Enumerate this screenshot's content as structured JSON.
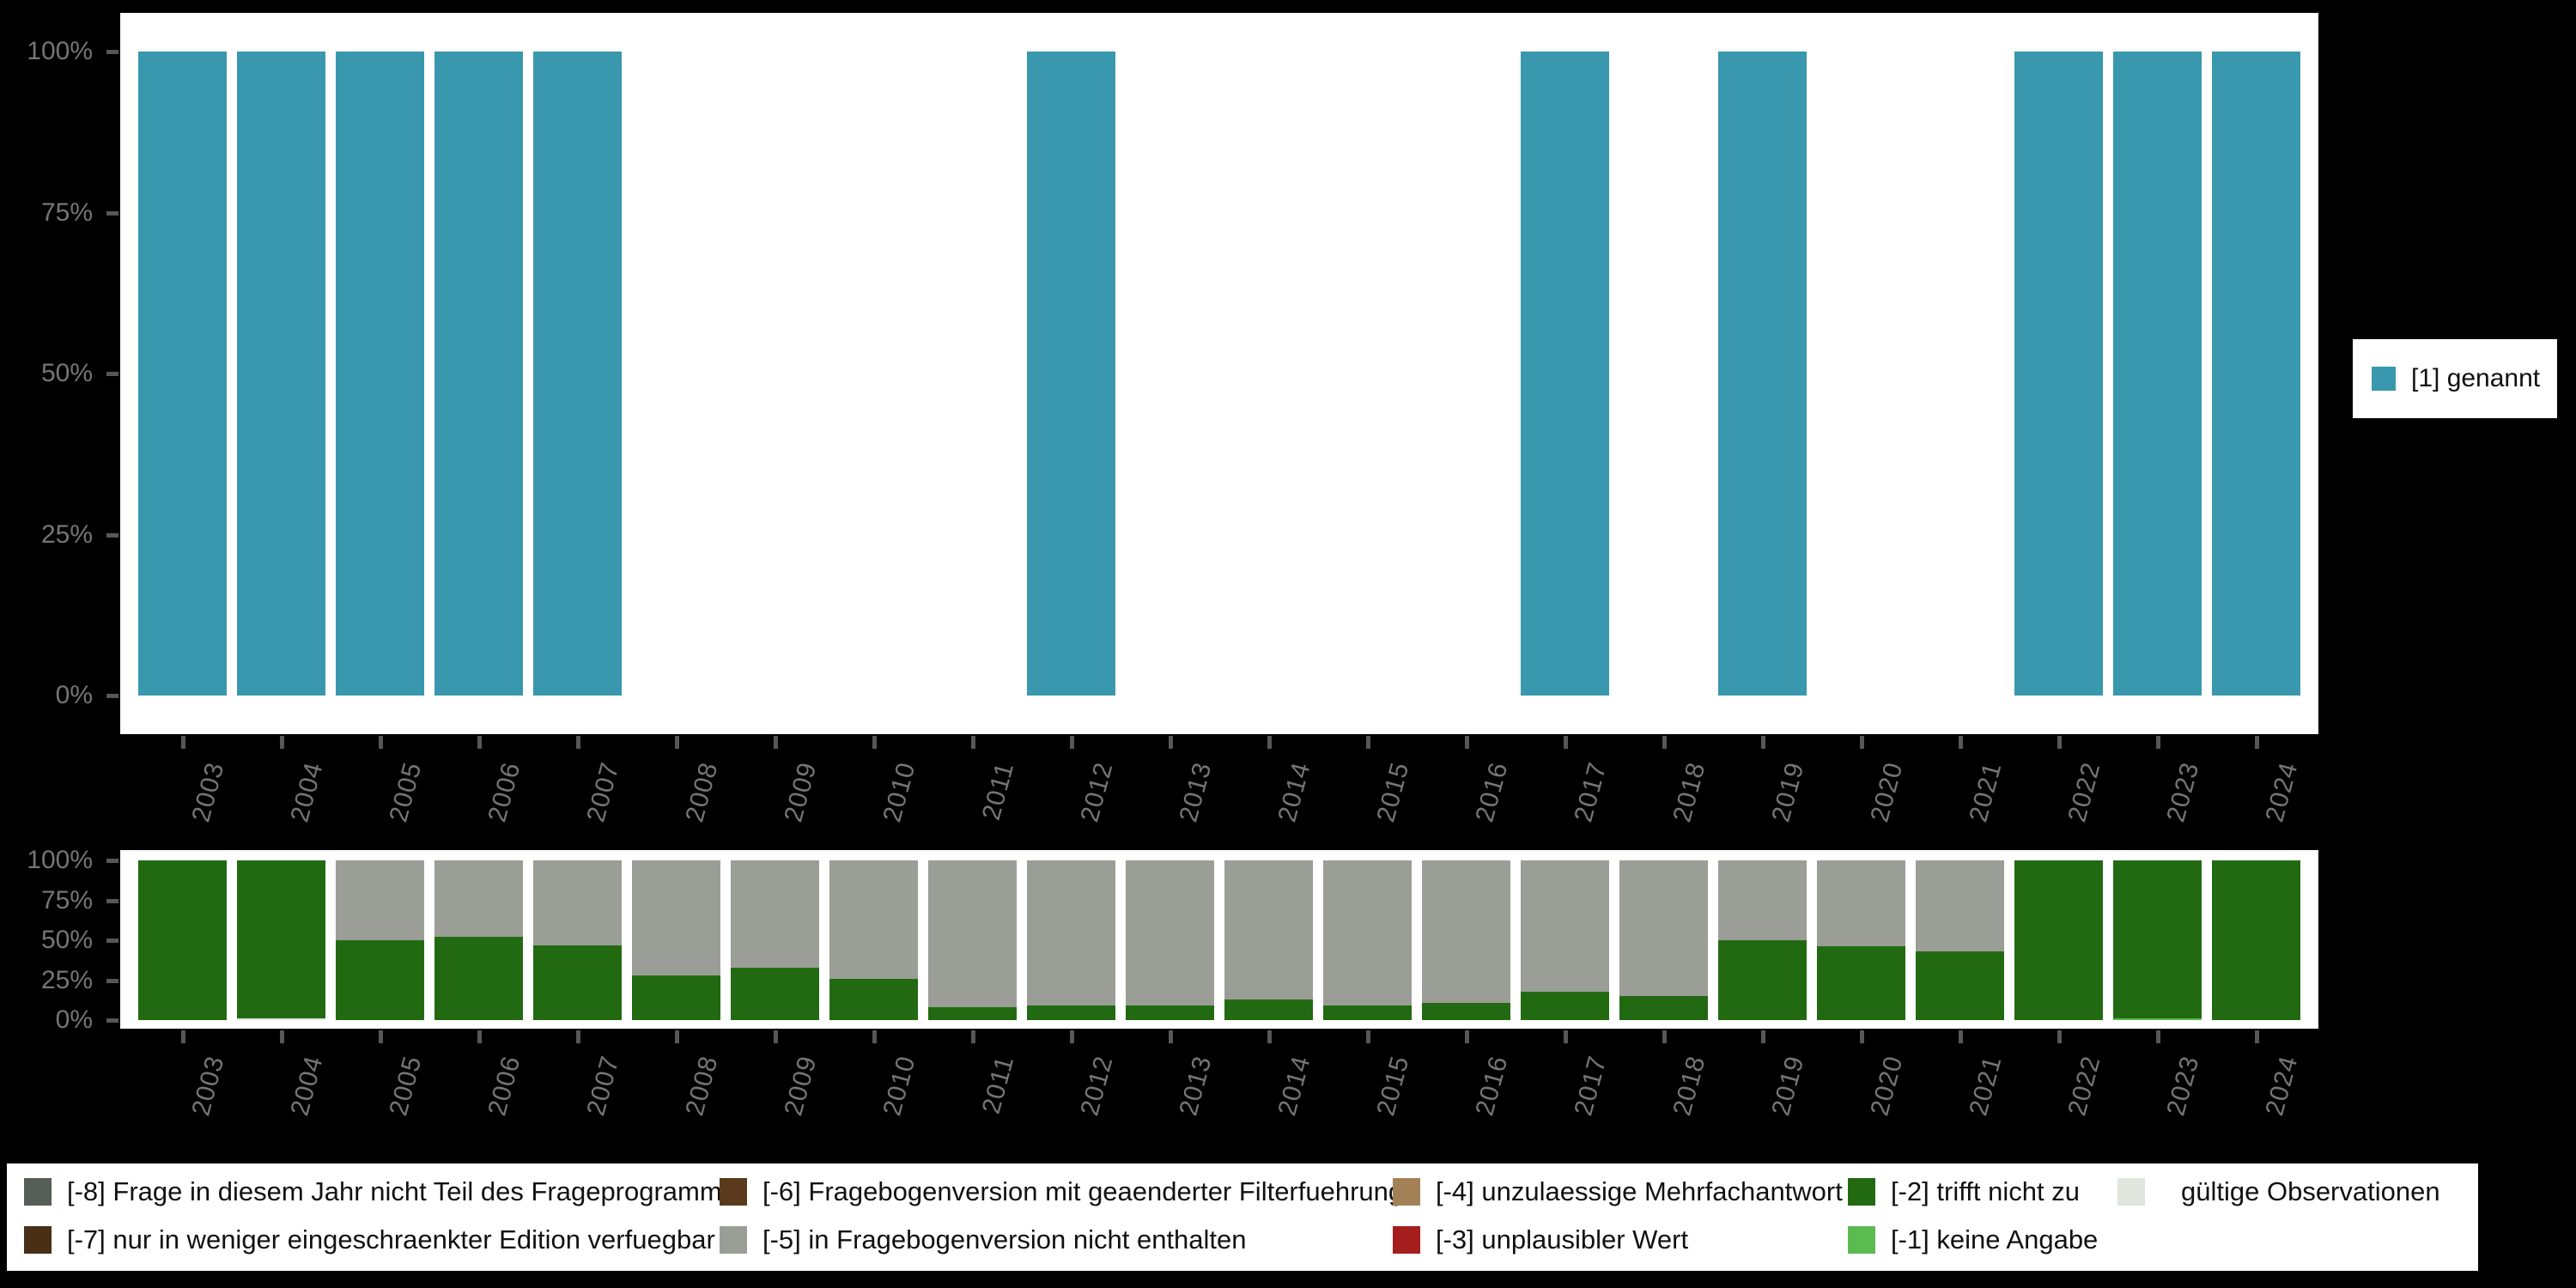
{
  "colors": {
    "background": "#000000",
    "panel": "#ffffff",
    "genannt_teal": "#3998AD",
    "trifft_nicht_zu_green": "#226A12",
    "nicht_enthalten_gray": "#9A9E96",
    "keine_angabe_lightgreen": "#5BBA50",
    "gueltige_lightgray": "#E0E5DD",
    "axis_text": "#757575",
    "tick": "#575757",
    "legend_text": "#111111"
  },
  "axis": {
    "y_tick_labels": [
      "100%",
      "75%",
      "50%",
      "25%",
      "0%"
    ],
    "x_tick_angle_deg": 75
  },
  "chart_data": [
    {
      "type": "bar",
      "stacked": true,
      "unit": "percent",
      "title": "",
      "xlabel": "",
      "ylabel": "",
      "ylim": [
        0,
        100
      ],
      "ytick_labels": [
        "0%",
        "25%",
        "50%",
        "75%",
        "100%"
      ],
      "grid": false,
      "legend_position": "right",
      "categories": [
        "2003",
        "2004",
        "2005",
        "2006",
        "2007",
        "2008",
        "2009",
        "2010",
        "2011",
        "2012",
        "2013",
        "2014",
        "2015",
        "2016",
        "2017",
        "2018",
        "2019",
        "2020",
        "2021",
        "2022",
        "2023",
        "2024"
      ],
      "series": [
        {
          "name": "[1] genannt",
          "color": "#3998AD",
          "values": [
            100,
            100,
            100,
            100,
            100,
            0,
            0,
            0,
            0,
            100,
            0,
            0,
            0,
            0,
            100,
            0,
            100,
            0,
            0,
            100,
            100,
            100
          ]
        }
      ]
    },
    {
      "type": "bar",
      "stacked": true,
      "unit": "percent",
      "title": "",
      "xlabel": "",
      "ylabel": "",
      "ylim": [
        0,
        100
      ],
      "ytick_labels": [
        "0%",
        "25%",
        "50%",
        "75%",
        "100%"
      ],
      "grid": false,
      "legend_position": "bottom",
      "categories": [
        "2003",
        "2004",
        "2005",
        "2006",
        "2007",
        "2008",
        "2009",
        "2010",
        "2011",
        "2012",
        "2013",
        "2014",
        "2015",
        "2016",
        "2017",
        "2018",
        "2019",
        "2020",
        "2021",
        "2022",
        "2023",
        "2024"
      ],
      "series": [
        {
          "name": "gültige Observationen",
          "color": "#E0E5DD",
          "values": [
            0,
            1,
            0,
            0,
            0,
            0,
            0,
            0,
            0,
            0,
            0,
            0,
            0,
            0,
            0,
            0,
            0,
            0,
            0,
            0,
            0,
            0
          ]
        },
        {
          "name": "[-1] keine Angabe",
          "color": "#5BBA50",
          "values": [
            0,
            0,
            0,
            0,
            0,
            0,
            0,
            0,
            0,
            0,
            0,
            0,
            0,
            0,
            0,
            0,
            0,
            0,
            0,
            0,
            1,
            0
          ]
        },
        {
          "name": "[-2] trifft nicht zu",
          "color": "#226A12",
          "values": [
            100,
            99,
            50,
            52,
            47,
            28,
            33,
            26,
            8,
            9,
            9,
            13,
            9,
            11,
            18,
            15,
            50,
            46,
            43,
            100,
            99,
            100
          ]
        },
        {
          "name": "[-5] in Fragebogenversion nicht enthalten",
          "color": "#9A9E96",
          "values": [
            0,
            0,
            50,
            48,
            53,
            72,
            67,
            74,
            92,
            91,
            91,
            87,
            91,
            89,
            82,
            85,
            50,
            54,
            57,
            0,
            0,
            0
          ]
        }
      ]
    }
  ],
  "legend_right": {
    "label": "[1] genannt",
    "color": "#3998AD"
  },
  "legend_bottom": {
    "items": [
      {
        "label": "[-8] Frage in diesem Jahr nicht Teil des Frageprogramms",
        "color": "#555F57",
        "col": 0,
        "row": 0
      },
      {
        "label": "[-7] nur in weniger eingeschraenkter Edition verfuegbar",
        "color": "#4A2F17",
        "col": 0,
        "row": 1
      },
      {
        "label": "[-6] Fragebogenversion mit geaenderter Filterfuehrung",
        "color": "#5A3A1A",
        "col": 1,
        "row": 0
      },
      {
        "label": "[-5] in Fragebogenversion nicht enthalten",
        "color": "#9A9E96",
        "col": 1,
        "row": 1
      },
      {
        "label": "[-4] unzulaessige Mehrfachantwort",
        "color": "#A38157",
        "col": 2,
        "row": 0
      },
      {
        "label": "[-3] unplausibler Wert",
        "color": "#A51E1E",
        "col": 2,
        "row": 1
      },
      {
        "label": "[-2] trifft nicht zu",
        "color": "#226A12",
        "col": 3,
        "row": 0
      },
      {
        "label": "[-1] keine Angabe",
        "color": "#5BBA50",
        "col": 3,
        "row": 1
      },
      {
        "label": "gültige Observationen",
        "color": "#E0E5DD",
        "col": 4,
        "row": 0
      }
    ]
  }
}
